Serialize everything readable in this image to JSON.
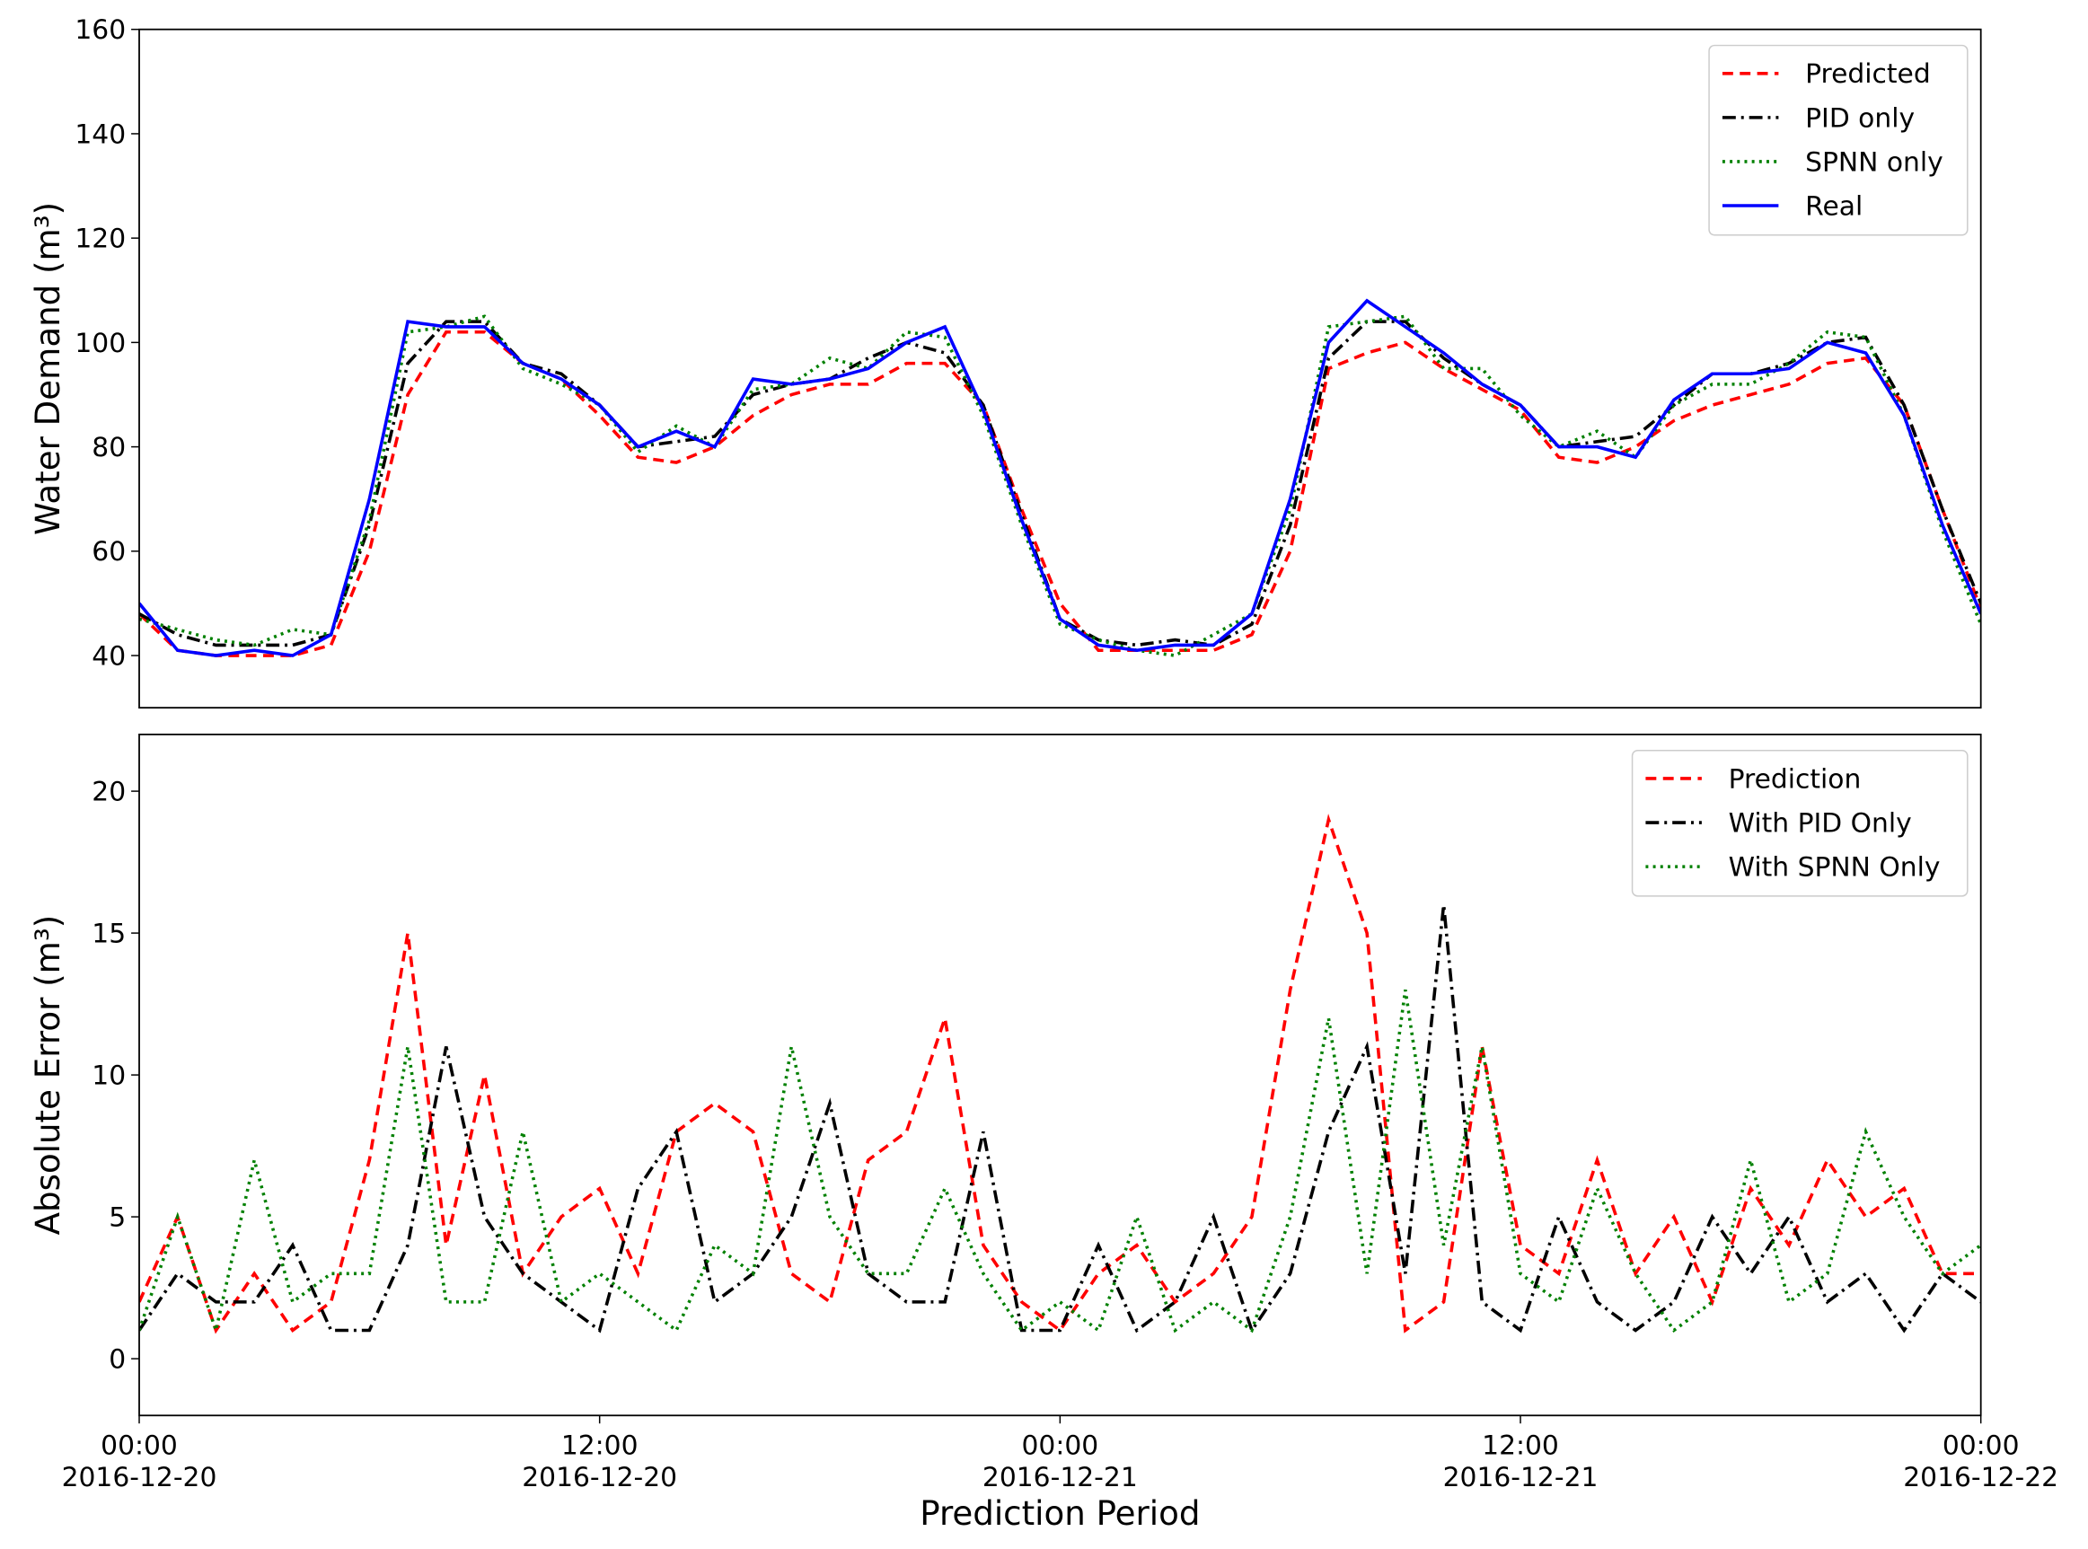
{
  "chart_data": [
    {
      "type": "line",
      "y_label": "Water Demand (m³)",
      "x": [
        "2016-12-20 00:00",
        "2016-12-20 01:00",
        "2016-12-20 02:00",
        "2016-12-20 03:00",
        "2016-12-20 04:00",
        "2016-12-20 05:00",
        "2016-12-20 06:00",
        "2016-12-20 07:00",
        "2016-12-20 08:00",
        "2016-12-20 09:00",
        "2016-12-20 10:00",
        "2016-12-20 11:00",
        "2016-12-20 12:00",
        "2016-12-20 13:00",
        "2016-12-20 14:00",
        "2016-12-20 15:00",
        "2016-12-20 16:00",
        "2016-12-20 17:00",
        "2016-12-20 18:00",
        "2016-12-20 19:00",
        "2016-12-20 20:00",
        "2016-12-20 21:00",
        "2016-12-20 22:00",
        "2016-12-20 23:00",
        "2016-12-21 00:00",
        "2016-12-21 01:00",
        "2016-12-21 02:00",
        "2016-12-21 03:00",
        "2016-12-21 04:00",
        "2016-12-21 05:00",
        "2016-12-21 06:00",
        "2016-12-21 07:00",
        "2016-12-21 08:00",
        "2016-12-21 09:00",
        "2016-12-21 10:00",
        "2016-12-21 11:00",
        "2016-12-21 12:00",
        "2016-12-21 13:00",
        "2016-12-21 14:00",
        "2016-12-21 15:00",
        "2016-12-21 16:00",
        "2016-12-21 17:00",
        "2016-12-21 18:00",
        "2016-12-21 19:00",
        "2016-12-21 20:00",
        "2016-12-21 21:00",
        "2016-12-21 22:00",
        "2016-12-21 23:00",
        "2016-12-22 00:00"
      ],
      "xlim": [
        "2016-12-20 00:00",
        "2016-12-22 00:00"
      ],
      "ylim": [
        30,
        160
      ],
      "yticks": [
        40,
        60,
        80,
        100,
        120,
        140,
        160
      ],
      "legend": "upper right",
      "series": [
        {
          "name": "Predicted",
          "color": "#ff0000",
          "linestyle": "dashed",
          "values": [
            48,
            41,
            40,
            40,
            40,
            42,
            60,
            90,
            102,
            102,
            96,
            93,
            86,
            78,
            77,
            80,
            86,
            90,
            92,
            92,
            96,
            96,
            88,
            68,
            50,
            41,
            41,
            41,
            41,
            44,
            60,
            95,
            98,
            100,
            95,
            91,
            87,
            78,
            77,
            80,
            85,
            88,
            90,
            92,
            96,
            97,
            88,
            68,
            49
          ]
        },
        {
          "name": "PID only",
          "color": "#000000",
          "linestyle": "dashdot",
          "values": [
            48,
            44,
            42,
            42,
            42,
            44,
            65,
            96,
            104,
            104,
            96,
            94,
            88,
            80,
            81,
            82,
            90,
            92,
            93,
            97,
            100,
            98,
            88,
            67,
            47,
            43,
            42,
            43,
            42,
            46,
            65,
            97,
            104,
            104,
            97,
            92,
            88,
            80,
            81,
            82,
            88,
            94,
            94,
            96,
            100,
            101,
            88,
            68,
            50
          ]
        },
        {
          "name": "SPNN only",
          "color": "#008000",
          "linestyle": "dotted",
          "values": [
            47,
            45,
            43,
            42,
            45,
            44,
            66,
            102,
            103,
            105,
            95,
            92,
            88,
            79,
            84,
            80,
            91,
            92,
            97,
            95,
            102,
            101,
            86,
            65,
            46,
            43,
            41,
            40,
            44,
            48,
            68,
            103,
            104,
            105,
            95,
            95,
            86,
            80,
            83,
            78,
            88,
            92,
            92,
            96,
            102,
            101,
            86,
            64,
            46
          ]
        },
        {
          "name": "Real",
          "color": "#0000ff",
          "linestyle": "solid",
          "values": [
            50,
            41,
            40,
            41,
            40,
            44,
            70,
            104,
            103,
            103,
            96,
            93,
            88,
            80,
            83,
            80,
            93,
            92,
            93,
            95,
            100,
            103,
            87,
            66,
            47,
            42,
            41,
            42,
            42,
            48,
            70,
            100,
            108,
            103,
            98,
            92,
            88,
            80,
            80,
            78,
            89,
            94,
            94,
            95,
            100,
            98,
            86,
            65,
            48
          ]
        }
      ]
    },
    {
      "type": "line",
      "y_label": "Absolute Error (m³)",
      "x_label": "Prediction Period",
      "x": [
        "2016-12-20 00:00",
        "2016-12-20 01:00",
        "2016-12-20 02:00",
        "2016-12-20 03:00",
        "2016-12-20 04:00",
        "2016-12-20 05:00",
        "2016-12-20 06:00",
        "2016-12-20 07:00",
        "2016-12-20 08:00",
        "2016-12-20 09:00",
        "2016-12-20 10:00",
        "2016-12-20 11:00",
        "2016-12-20 12:00",
        "2016-12-20 13:00",
        "2016-12-20 14:00",
        "2016-12-20 15:00",
        "2016-12-20 16:00",
        "2016-12-20 17:00",
        "2016-12-20 18:00",
        "2016-12-20 19:00",
        "2016-12-20 20:00",
        "2016-12-20 21:00",
        "2016-12-20 22:00",
        "2016-12-20 23:00",
        "2016-12-21 00:00",
        "2016-12-21 01:00",
        "2016-12-21 02:00",
        "2016-12-21 03:00",
        "2016-12-21 04:00",
        "2016-12-21 05:00",
        "2016-12-21 06:00",
        "2016-12-21 07:00",
        "2016-12-21 08:00",
        "2016-12-21 09:00",
        "2016-12-21 10:00",
        "2016-12-21 11:00",
        "2016-12-21 12:00",
        "2016-12-21 13:00",
        "2016-12-21 14:00",
        "2016-12-21 15:00",
        "2016-12-21 16:00",
        "2016-12-21 17:00",
        "2016-12-21 18:00",
        "2016-12-21 19:00",
        "2016-12-21 20:00",
        "2016-12-21 21:00",
        "2016-12-21 22:00",
        "2016-12-21 23:00",
        "2016-12-22 00:00"
      ],
      "xlim": [
        "2016-12-20 00:00",
        "2016-12-22 00:00"
      ],
      "xticks": [
        {
          "value": "2016-12-20 00:00",
          "label": "00:00\n2016-12-20"
        },
        {
          "value": "2016-12-20 12:00",
          "label": "12:00\n2016-12-20"
        },
        {
          "value": "2016-12-21 00:00",
          "label": "00:00\n2016-12-21"
        },
        {
          "value": "2016-12-21 12:00",
          "label": "12:00\n2016-12-21"
        },
        {
          "value": "2016-12-22 00:00",
          "label": "00:00\n2016-12-22"
        }
      ],
      "ylim": [
        -2,
        22
      ],
      "yticks": [
        0,
        5,
        10,
        15,
        20
      ],
      "legend": "upper right",
      "series": [
        {
          "name": "Prediction",
          "color": "#ff0000",
          "linestyle": "dashed",
          "values": [
            2,
            5,
            1,
            3,
            1,
            2,
            7,
            15,
            4,
            10,
            3,
            5,
            6,
            3,
            8,
            9,
            8,
            3,
            2,
            7,
            8,
            12,
            4,
            2,
            1,
            3,
            4,
            2,
            3,
            5,
            13,
            19,
            15,
            1,
            2,
            11,
            4,
            3,
            7,
            3,
            5,
            2,
            6,
            4,
            7,
            5,
            6,
            3,
            3
          ]
        },
        {
          "name": "With PID Only",
          "color": "#000000",
          "linestyle": "dashdot",
          "values": [
            1,
            3,
            2,
            2,
            4,
            1,
            1,
            4,
            11,
            5,
            3,
            2,
            1,
            6,
            8,
            2,
            3,
            5,
            9,
            3,
            2,
            2,
            8,
            1,
            1,
            4,
            1,
            2,
            5,
            1,
            3,
            8,
            11,
            3,
            16,
            2,
            1,
            5,
            2,
            1,
            2,
            5,
            3,
            5,
            2,
            3,
            1,
            3,
            2
          ]
        },
        {
          "name": "With SPNN Only",
          "color": "#008000",
          "linestyle": "dotted",
          "values": [
            1,
            5,
            1,
            7,
            2,
            3,
            3,
            11,
            2,
            2,
            8,
            2,
            3,
            2,
            1,
            4,
            3,
            11,
            5,
            3,
            3,
            6,
            3,
            1,
            2,
            1,
            5,
            1,
            2,
            1,
            5,
            12,
            3,
            13,
            4,
            11,
            3,
            2,
            6,
            3,
            1,
            2,
            7,
            2,
            3,
            8,
            5,
            3,
            4
          ]
        }
      ]
    }
  ]
}
